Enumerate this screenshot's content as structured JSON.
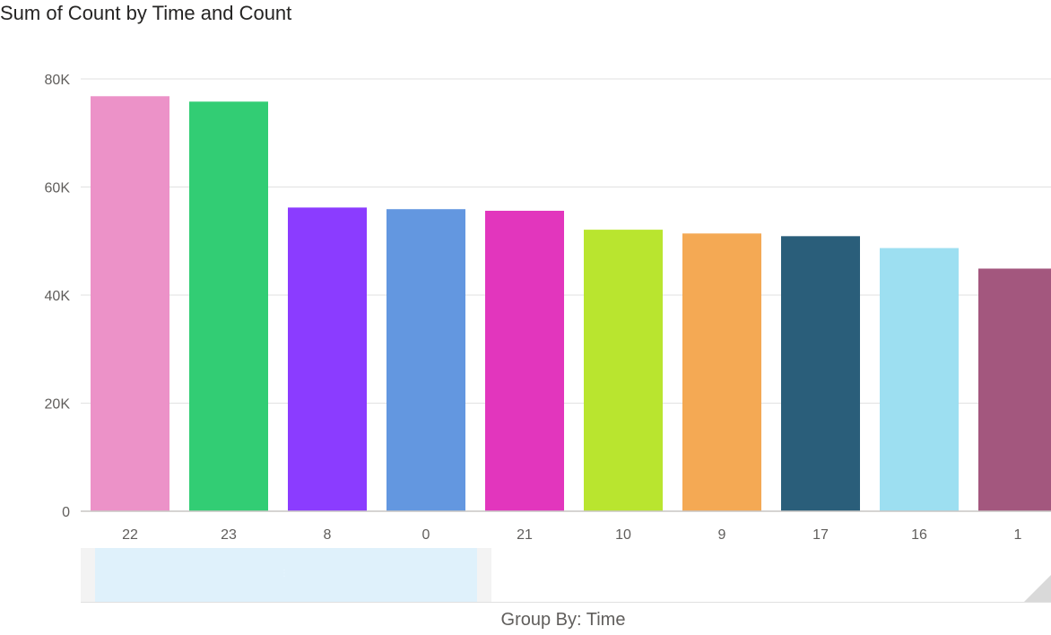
{
  "chart_data": {
    "type": "bar",
    "title": "Sum of Count by Time and Count",
    "xlabel": "Group By: Time",
    "ylabel": "",
    "categories": [
      "22",
      "23",
      "8",
      "0",
      "21",
      "10",
      "9",
      "17",
      "16",
      "1"
    ],
    "values": [
      76800,
      75800,
      56200,
      55900,
      55600,
      52100,
      51400,
      50900,
      48700,
      44900
    ],
    "colors": [
      "#ec92c8",
      "#32cd74",
      "#8b3cff",
      "#6397e0",
      "#e236bd",
      "#b9e52f",
      "#f4a954",
      "#2a5e7a",
      "#9ddff1",
      "#a3577e"
    ],
    "ylim": [
      0,
      80000
    ],
    "yticks": [
      {
        "value": 0,
        "label": "0"
      },
      {
        "value": 20000,
        "label": "20K"
      },
      {
        "value": 40000,
        "label": "40K"
      },
      {
        "value": 60000,
        "label": "60K"
      },
      {
        "value": 80000,
        "label": "80K"
      }
    ],
    "grid": true,
    "legend": "none"
  },
  "scrollbar": {
    "visible_fraction": 0.42
  }
}
